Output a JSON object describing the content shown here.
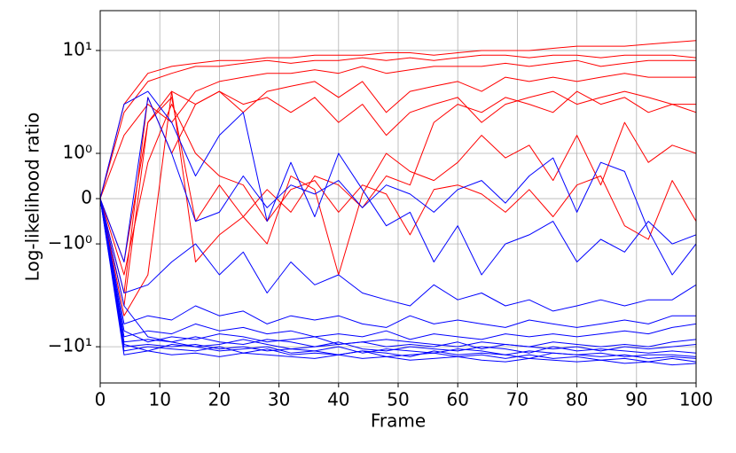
{
  "chart_data": {
    "type": "line",
    "xlabel": "Frame",
    "ylabel": "Log-likelihood ratio",
    "yscale": "symlog",
    "grid": true,
    "xlim": [
      0,
      100
    ],
    "xticks": [
      0,
      10,
      20,
      30,
      40,
      50,
      60,
      70,
      80,
      90,
      100
    ],
    "ylim": [
      -22.5,
      24.4
    ],
    "yticks": [
      {
        "value": 10,
        "label": "10¹"
      },
      {
        "value": 1,
        "label": "10⁰"
      },
      0,
      {
        "value": -1,
        "label": "−10⁰"
      },
      {
        "value": -10,
        "label": "−10¹"
      }
    ],
    "x": [
      0,
      4,
      8,
      12,
      16,
      20,
      24,
      28,
      32,
      36,
      40,
      44,
      48,
      52,
      56,
      60,
      64,
      68,
      72,
      76,
      80,
      84,
      88,
      92,
      96,
      100
    ],
    "series": [
      {
        "color": "#ff0000",
        "values": [
          0,
          3,
          6,
          7,
          7.5,
          8,
          8,
          8.5,
          8.5,
          9,
          9,
          9,
          9.5,
          9.5,
          9,
          9.5,
          10,
          10,
          10,
          10.5,
          11,
          11,
          11,
          11.5,
          12,
          12.5
        ]
      },
      {
        "color": "#ff0000",
        "values": [
          0,
          2.5,
          5,
          6,
          7,
          7,
          7.5,
          8,
          7.5,
          8,
          8,
          8.5,
          8,
          8.5,
          8,
          8.5,
          9,
          9,
          8.5,
          9,
          9,
          8.5,
          9,
          9,
          9,
          8.5
        ]
      },
      {
        "color": "#ff0000",
        "values": [
          0,
          1.5,
          3,
          2,
          4,
          5,
          5.5,
          6,
          6,
          6.5,
          6,
          7,
          6,
          6.5,
          7,
          7,
          7,
          7.5,
          7,
          7.5,
          8,
          7,
          7.5,
          8,
          8,
          8
        ]
      },
      {
        "color": "#ff0000",
        "values": [
          0,
          -1.5,
          2,
          4,
          3,
          4,
          2.5,
          4,
          4.5,
          5,
          3.5,
          5,
          2.5,
          4,
          4.5,
          5,
          4,
          5.5,
          5,
          5.5,
          5,
          5.5,
          6,
          5.5,
          5.5,
          5.5
        ]
      },
      {
        "color": "#ff0000",
        "values": [
          0,
          -3,
          3.5,
          1,
          3,
          4,
          3,
          3.5,
          2.5,
          3.5,
          2,
          3,
          1.5,
          2.5,
          3,
          3.5,
          2,
          3,
          3.5,
          4,
          3,
          3.5,
          4,
          3.5,
          3,
          3
        ]
      },
      {
        "color": "#ff0000",
        "values": [
          0,
          -2,
          0.8,
          3,
          1,
          0.5,
          0.3,
          -0.5,
          0.2,
          0.4,
          -0.3,
          0.3,
          0.1,
          -0.8,
          0.2,
          0.3,
          0.1,
          -0.3,
          0.2,
          -0.4,
          0.3,
          0.5,
          -0.6,
          -0.9,
          0.4,
          -0.5
        ]
      },
      {
        "color": "#ff0000",
        "values": [
          0,
          -4,
          2,
          3.5,
          -0.5,
          0.3,
          -0.4,
          -1,
          0.5,
          0.2,
          -2,
          0.1,
          1,
          0.6,
          0.4,
          0.8,
          1.5,
          0.9,
          1.2,
          0.4,
          1.5,
          0.3,
          2,
          0.8,
          1.2,
          1
        ]
      },
      {
        "color": "#ff0000",
        "values": [
          0,
          -5,
          -2,
          4,
          -1.5,
          -0.8,
          -0.4,
          0.2,
          -0.3,
          0.5,
          0.3,
          -0.2,
          0.5,
          0.3,
          2,
          3,
          2.5,
          3.5,
          3,
          2.5,
          4,
          3,
          3.5,
          2.5,
          3,
          2.5
        ]
      },
      {
        "color": "#0000ff",
        "values": [
          0,
          -1.5,
          3.5,
          1,
          -0.5,
          -0.3,
          0.5,
          -0.2,
          0.3,
          0.1,
          0.4,
          -0.2,
          0.3,
          0.1,
          -0.3,
          0.2,
          0.4,
          -0.1,
          0.5,
          0.9,
          -0.3,
          0.8,
          0.6,
          -0.7,
          -2,
          -1
        ]
      },
      {
        "color": "#0000ff",
        "values": [
          0,
          3,
          4,
          2,
          0.5,
          1.5,
          2.5,
          -0.5,
          0.8,
          -0.4,
          1,
          0.2,
          -0.6,
          -0.3,
          -1.5,
          -0.6,
          -2,
          -1,
          -0.8,
          -0.5,
          -1.5,
          -0.9,
          -1.2,
          -0.5,
          -1,
          -0.8
        ]
      },
      {
        "color": "#0000ff",
        "values": [
          0,
          -3,
          -2.5,
          -1.5,
          -1,
          -2,
          -1.2,
          -3,
          -1.5,
          -2.5,
          -2,
          -3,
          -3.5,
          -4,
          -2.5,
          -3.5,
          -3,
          -4,
          -3.5,
          -4.5,
          -4,
          -3.5,
          -4,
          -3.5,
          -3.5,
          -2.5
        ]
      },
      {
        "color": "#0000ff",
        "values": [
          0,
          -6,
          -5,
          -5.5,
          -4,
          -5,
          -4.5,
          -6,
          -5,
          -5.5,
          -5,
          -6,
          -6.5,
          -5,
          -6,
          -5.5,
          -6,
          -6.5,
          -5.5,
          -6,
          -6.5,
          -6,
          -5.5,
          -6,
          -5,
          -5
        ]
      },
      {
        "color": "#0000ff",
        "values": [
          0,
          -8,
          -7,
          -7.5,
          -6,
          -7,
          -6.5,
          -7.5,
          -7,
          -8,
          -7.5,
          -8,
          -7,
          -8.5,
          -7.5,
          -8,
          -8.5,
          -7.5,
          -8,
          -7.5,
          -8,
          -7.5,
          -7,
          -7.5,
          -6.5,
          -6
        ]
      },
      {
        "color": "#0000ff",
        "values": [
          0,
          -9,
          -8.5,
          -9,
          -8,
          -9,
          -9.5,
          -8.5,
          -9,
          -10,
          -9.5,
          -9,
          -10,
          -9.5,
          -10,
          -9,
          -10.5,
          -9.5,
          -10,
          -10.5,
          -10,
          -11,
          -10,
          -10.5,
          -10,
          -9.5
        ]
      },
      {
        "color": "#0000ff",
        "values": [
          0,
          -10,
          -9.5,
          -10,
          -9.5,
          -10.5,
          -10,
          -11,
          -10.5,
          -11,
          -10,
          -11.5,
          -10.5,
          -11,
          -11.5,
          -10.5,
          -11,
          -12,
          -11,
          -11.5,
          -12,
          -11.5,
          -12.5,
          -12,
          -12,
          -12.5
        ]
      },
      {
        "color": "#0000ff",
        "values": [
          0,
          -11,
          -10,
          -10.5,
          -11,
          -10,
          -11.5,
          -10.5,
          -12,
          -11.5,
          -12,
          -11,
          -12.5,
          -12,
          -11.5,
          -12.5,
          -12,
          -13,
          -12,
          -13,
          -12.5,
          -13.5,
          -13,
          -14,
          -13,
          -14
        ]
      },
      {
        "color": "#0000ff",
        "values": [
          0,
          -7,
          -9,
          -8,
          -8.5,
          -7.5,
          -8,
          -9,
          -8.5,
          -8,
          -9.5,
          -9,
          -8.5,
          -9,
          -9.5,
          -10,
          -9,
          -9.5,
          -10,
          -9,
          -9.5,
          -10,
          -9.5,
          -10,
          -9,
          -8.5
        ]
      },
      {
        "color": "#0000ff",
        "values": [
          0,
          -9.5,
          -11,
          -9.5,
          -10,
          -11,
          -10.5,
          -10,
          -11.5,
          -11,
          -12,
          -11,
          -11.5,
          -12.5,
          -11,
          -12,
          -11.5,
          -12,
          -13,
          -11.5,
          -12,
          -12.5,
          -12,
          -13,
          -12.5,
          -13
        ]
      },
      {
        "color": "#0000ff",
        "values": [
          0,
          -4,
          -8,
          -9,
          -10,
          -9.5,
          -8.5,
          -9.5,
          -10.5,
          -10,
          -9,
          -10.5,
          -11,
          -10,
          -10.5,
          -11,
          -10,
          -10.5,
          -11.5,
          -10,
          -11,
          -10.5,
          -11,
          -11.5,
          -11,
          -11.5
        ]
      },
      {
        "color": "#0000ff",
        "values": [
          0,
          -12,
          -11,
          -12,
          -11.5,
          -12.5,
          -11.5,
          -12,
          -12.5,
          -13,
          -12,
          -13,
          -12.5,
          -13.5,
          -13,
          -12.5,
          -13.5,
          -14,
          -13,
          -13.5,
          -14,
          -13.5,
          -14.5,
          -14,
          -15,
          -14.5
        ]
      }
    ]
  }
}
